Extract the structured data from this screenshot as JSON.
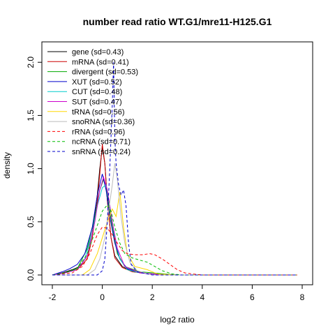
{
  "chart_data": {
    "type": "line",
    "title": "number read ratio WT.G1/mre11-H125.G1",
    "xlabel": "log2 ratio",
    "ylabel": "density",
    "xlim": [
      -2,
      8
    ],
    "ylim": [
      0,
      2.1
    ],
    "xticks": [
      "-2",
      "0",
      "2",
      "4",
      "6",
      "8"
    ],
    "yticks": [
      "0.0",
      "0.5",
      "1.0",
      "1.5",
      "2.0"
    ],
    "legend_position": "top-left",
    "grid": false,
    "series": [
      {
        "name": "gene (sd=0.43)",
        "color": "#000000",
        "dash": false,
        "points": [
          [
            -2,
            0
          ],
          [
            -1.6,
            0.02
          ],
          [
            -1.2,
            0.05
          ],
          [
            -0.9,
            0.08
          ],
          [
            -0.6,
            0.18
          ],
          [
            -0.4,
            0.4
          ],
          [
            -0.2,
            0.75
          ],
          [
            -0.1,
            1.0
          ],
          [
            0,
            1.2
          ],
          [
            0.1,
            1.05
          ],
          [
            0.2,
            0.7
          ],
          [
            0.35,
            0.35
          ],
          [
            0.5,
            0.18
          ],
          [
            0.8,
            0.08
          ],
          [
            1.2,
            0.03
          ],
          [
            2,
            0.01
          ],
          [
            3,
            0
          ],
          [
            7.8,
            0
          ]
        ]
      },
      {
        "name": "mRNA (sd=0.41)",
        "color": "#cc0000",
        "dash": false,
        "points": [
          [
            -2,
            0
          ],
          [
            -1.5,
            0.02
          ],
          [
            -1,
            0.05
          ],
          [
            -0.6,
            0.15
          ],
          [
            -0.4,
            0.35
          ],
          [
            -0.2,
            0.7
          ],
          [
            -0.1,
            0.95
          ],
          [
            0,
            1.23
          ],
          [
            0.1,
            1.05
          ],
          [
            0.2,
            0.7
          ],
          [
            0.35,
            0.35
          ],
          [
            0.5,
            0.16
          ],
          [
            0.8,
            0.07
          ],
          [
            1.2,
            0.03
          ],
          [
            2,
            0.01
          ],
          [
            3,
            0
          ],
          [
            7.8,
            0
          ]
        ]
      },
      {
        "name": "divergent (sd=0.53)",
        "color": "#00aa00",
        "dash": false,
        "points": [
          [
            -2,
            0
          ],
          [
            -1.5,
            0.02
          ],
          [
            -1,
            0.06
          ],
          [
            -0.6,
            0.25
          ],
          [
            -0.3,
            0.55
          ],
          [
            -0.1,
            0.8
          ],
          [
            0.05,
            0.9
          ],
          [
            0.2,
            0.75
          ],
          [
            0.4,
            0.45
          ],
          [
            0.6,
            0.2
          ],
          [
            0.9,
            0.08
          ],
          [
            1.5,
            0.03
          ],
          [
            2.5,
            0.01
          ],
          [
            3,
            0
          ],
          [
            7.8,
            0
          ]
        ]
      },
      {
        "name": "XUT (sd=0.52)",
        "color": "#0000cc",
        "dash": false,
        "points": [
          [
            -2,
            0
          ],
          [
            -1.6,
            0.03
          ],
          [
            -1.3,
            0.06
          ],
          [
            -1,
            0.1
          ],
          [
            -0.7,
            0.2
          ],
          [
            -0.4,
            0.45
          ],
          [
            -0.2,
            0.75
          ],
          [
            0,
            0.95
          ],
          [
            0.15,
            0.8
          ],
          [
            0.3,
            0.55
          ],
          [
            0.5,
            0.3
          ],
          [
            0.7,
            0.15
          ],
          [
            1,
            0.06
          ],
          [
            1.5,
            0.02
          ],
          [
            2.5,
            0
          ],
          [
            7.8,
            0
          ]
        ]
      },
      {
        "name": "CUT (sd=0.48)",
        "color": "#00cccc",
        "dash": false,
        "points": [
          [
            -2,
            0
          ],
          [
            -1.5,
            0.02
          ],
          [
            -1,
            0.05
          ],
          [
            -0.7,
            0.15
          ],
          [
            -0.4,
            0.4
          ],
          [
            -0.2,
            0.65
          ],
          [
            0,
            0.82
          ],
          [
            0.15,
            0.85
          ],
          [
            0.3,
            0.65
          ],
          [
            0.5,
            0.35
          ],
          [
            0.7,
            0.15
          ],
          [
            1,
            0.05
          ],
          [
            1.5,
            0.02
          ],
          [
            2.5,
            0
          ],
          [
            7.8,
            0
          ]
        ]
      },
      {
        "name": "SUT (sd=0.47)",
        "color": "#cc00cc",
        "dash": false,
        "points": [
          [
            -2,
            0
          ],
          [
            -1.5,
            0.02
          ],
          [
            -1,
            0.05
          ],
          [
            -0.6,
            0.18
          ],
          [
            -0.3,
            0.5
          ],
          [
            -0.1,
            0.8
          ],
          [
            0.05,
            0.92
          ],
          [
            0.2,
            0.8
          ],
          [
            0.4,
            0.5
          ],
          [
            0.6,
            0.25
          ],
          [
            0.9,
            0.08
          ],
          [
            1.5,
            0.02
          ],
          [
            2.5,
            0
          ],
          [
            7.8,
            0
          ]
        ]
      },
      {
        "name": "tRNA (sd=0.56)",
        "color": "#ffd700",
        "dash": false,
        "points": [
          [
            -2,
            0
          ],
          [
            -0.8,
            0
          ],
          [
            -0.5,
            0.05
          ],
          [
            -0.2,
            0.2
          ],
          [
            0,
            0.35
          ],
          [
            0.2,
            0.5
          ],
          [
            0.4,
            0.62
          ],
          [
            0.55,
            0.55
          ],
          [
            0.7,
            0.78
          ],
          [
            0.85,
            0.45
          ],
          [
            1,
            0.2
          ],
          [
            1.3,
            0.08
          ],
          [
            1.8,
            0.05
          ],
          [
            2,
            0.03
          ],
          [
            2.2,
            0.01
          ],
          [
            3,
            0
          ],
          [
            7.8,
            0
          ]
        ]
      },
      {
        "name": "snoRNA (sd=0.36)",
        "color": "#bbbbbb",
        "dash": false,
        "points": [
          [
            -2,
            0
          ],
          [
            -0.6,
            0
          ],
          [
            -0.3,
            0.05
          ],
          [
            -0.1,
            0.15
          ],
          [
            0.1,
            0.35
          ],
          [
            0.25,
            0.6
          ],
          [
            0.4,
            0.85
          ],
          [
            0.5,
            1.05
          ],
          [
            0.6,
            0.9
          ],
          [
            0.75,
            0.55
          ],
          [
            0.9,
            0.3
          ],
          [
            1.1,
            0.12
          ],
          [
            1.4,
            0.04
          ],
          [
            2,
            0
          ],
          [
            7.8,
            0
          ]
        ]
      },
      {
        "name": "rRNA (sd=0.96)",
        "color": "#ff0000",
        "dash": true,
        "points": [
          [
            -2,
            0
          ],
          [
            -1.2,
            0.02
          ],
          [
            -0.8,
            0.08
          ],
          [
            -0.5,
            0.2
          ],
          [
            -0.2,
            0.38
          ],
          [
            0,
            0.45
          ],
          [
            0.2,
            0.44
          ],
          [
            0.4,
            0.38
          ],
          [
            0.6,
            0.3
          ],
          [
            0.8,
            0.23
          ],
          [
            1.0,
            0.2
          ],
          [
            1.3,
            0.19
          ],
          [
            1.6,
            0.19
          ],
          [
            1.9,
            0.2
          ],
          [
            2.1,
            0.19
          ],
          [
            2.4,
            0.15
          ],
          [
            2.7,
            0.1
          ],
          [
            3.0,
            0.05
          ],
          [
            3.3,
            0.02
          ],
          [
            3.6,
            0.01
          ],
          [
            4,
            0
          ],
          [
            7.8,
            0
          ]
        ]
      },
      {
        "name": "ncRNA (sd=0.71)",
        "color": "#00bb00",
        "dash": true,
        "points": [
          [
            -2,
            0
          ],
          [
            -1.5,
            0.02
          ],
          [
            -1,
            0.06
          ],
          [
            -0.6,
            0.2
          ],
          [
            -0.3,
            0.4
          ],
          [
            0,
            0.6
          ],
          [
            0.2,
            0.66
          ],
          [
            0.35,
            0.6
          ],
          [
            0.5,
            0.45
          ],
          [
            0.7,
            0.3
          ],
          [
            0.9,
            0.2
          ],
          [
            1.2,
            0.16
          ],
          [
            1.5,
            0.14
          ],
          [
            1.8,
            0.12
          ],
          [
            2.1,
            0.08
          ],
          [
            2.4,
            0.04
          ],
          [
            2.8,
            0.01
          ],
          [
            3.2,
            0
          ],
          [
            7.8,
            0
          ]
        ]
      },
      {
        "name": "snRNA (sd=0.24)",
        "color": "#0000cc",
        "dash": true,
        "points": [
          [
            -2,
            0
          ],
          [
            -0.2,
            0
          ],
          [
            -0.1,
            0.02
          ],
          [
            0,
            0.04
          ],
          [
            0.1,
            0.15
          ],
          [
            0.2,
            0.5
          ],
          [
            0.3,
            1.0
          ],
          [
            0.4,
            1.6
          ],
          [
            0.45,
            2.0
          ],
          [
            0.5,
            1.3
          ],
          [
            0.55,
            1.05
          ],
          [
            0.65,
            0.85
          ],
          [
            0.75,
            0.75
          ],
          [
            0.85,
            0.8
          ],
          [
            0.95,
            0.65
          ],
          [
            1.05,
            0.3
          ],
          [
            1.15,
            0.1
          ],
          [
            1.4,
            0.03
          ],
          [
            2,
            0
          ],
          [
            7.8,
            0
          ]
        ]
      }
    ]
  }
}
